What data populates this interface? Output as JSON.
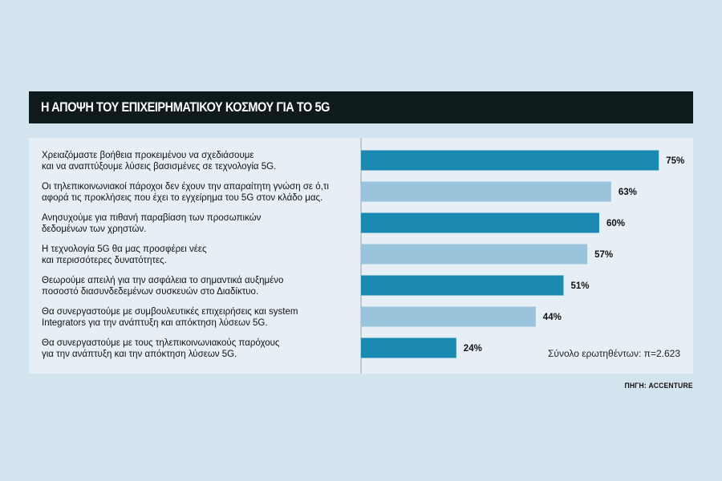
{
  "header": {
    "title": "Η ΑΠΟΨΗ ΤΟΥ ΕΠΙΧΕΙΡΗΜΑΤΙΚΟΥ ΚΟΣΜΟΥ ΓΙΑ ΤΟ 5G"
  },
  "footer": {
    "source": "ΠΗΓΗ: ACCENTURE"
  },
  "colors": {
    "bar_dark": "#1a8ab2",
    "bar_light": "#9ac3dc",
    "title_bg": "#0f1a1d",
    "panel_bg": "#e7eff6",
    "page_bg": "#d4e4ee"
  },
  "chart_data": {
    "type": "bar",
    "orientation": "horizontal",
    "categories": [
      [
        "Χρειαζόμαστε βοήθεια προκειμένου να σχεδιάσουμε",
        "και να αναπτύξουμε λύσεις βασισμένες σε τεχνολογία 5G."
      ],
      [
        "Οι τηλεπικοινωνιακοί πάροχοι δεν έχουν την απαραίτητη γνώση σε ό,τι",
        "αφορά τις προκλήσεις που έχει το εγχείρημα του 5G στον κλάδο μας."
      ],
      [
        "Ανησυχούμε για πιθανή παραβίαση των προσωπικών",
        "δεδομένων των χρηστών."
      ],
      [
        "Η τεχνολογία 5G θα μας προσφέρει νέες",
        "και περισσότερες δυνατότητες."
      ],
      [
        "Θεωρούμε απειλή για την ασφάλεια το σημαντικά αυξημένο",
        "ποσοστό διασυνδεδεμένων συσκευών στο Διαδίκτυο."
      ],
      [
        "Θα συνεργαστούμε με συμβουλευτικές επιχειρήσεις και system",
        "Integrators για την ανάπτυξη και απόκτηση λύσεων 5G."
      ],
      [
        "Θα συνεργαστούμε με τους τηλεπικοινωνιακούς παρόχους",
        "για την ανάπτυξη και την απόκτηση λύσεων 5G."
      ]
    ],
    "values": [
      75,
      63,
      60,
      57,
      51,
      44,
      24
    ],
    "value_labels": [
      "75%",
      "63%",
      "60%",
      "57%",
      "51%",
      "44%",
      "24%"
    ],
    "bar_shades": [
      "dark",
      "light",
      "dark",
      "light",
      "dark",
      "light",
      "dark"
    ],
    "xlim": [
      0,
      100
    ],
    "note": "Σύνολο ερωτηθέντων: π=2.623"
  }
}
